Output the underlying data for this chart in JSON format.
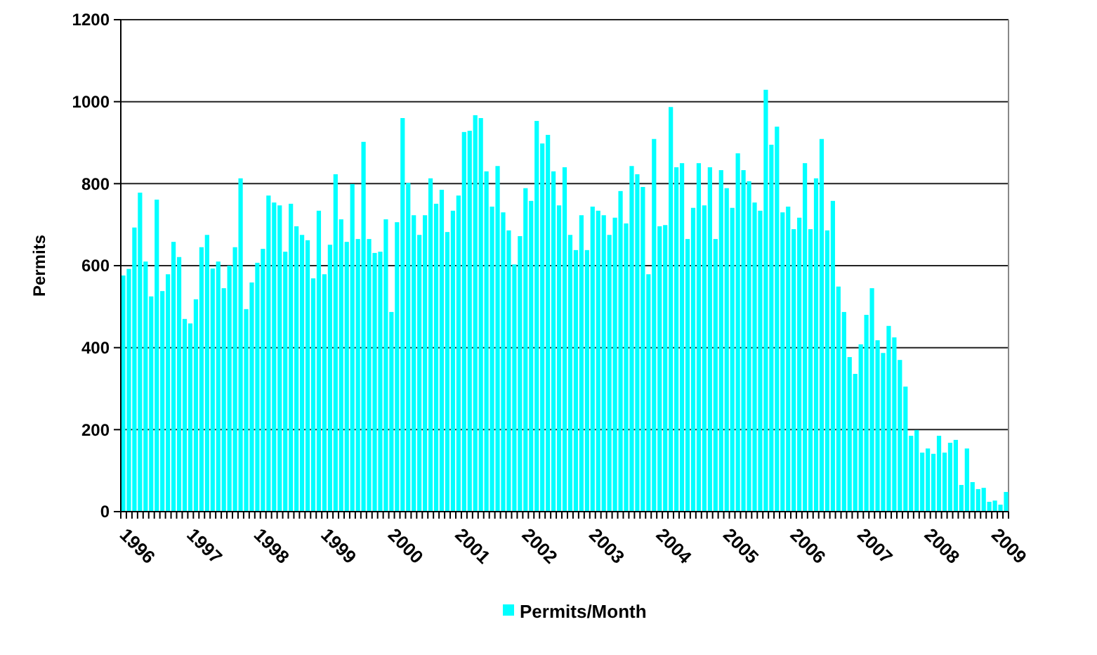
{
  "chart_data": {
    "type": "bar",
    "ylabel": "Permits",
    "categories": [
      "1996",
      null,
      null,
      null,
      null,
      null,
      null,
      null,
      null,
      null,
      null,
      null,
      "1997",
      null,
      null,
      null,
      null,
      null,
      null,
      null,
      null,
      null,
      null,
      null,
      "1998",
      null,
      null,
      null,
      null,
      null,
      null,
      null,
      null,
      null,
      null,
      null,
      "1999",
      null,
      null,
      null,
      null,
      null,
      null,
      null,
      null,
      null,
      null,
      null,
      "2000",
      null,
      null,
      null,
      null,
      null,
      null,
      null,
      null,
      null,
      null,
      null,
      "2001",
      null,
      null,
      null,
      null,
      null,
      null,
      null,
      null,
      null,
      null,
      null,
      "2002",
      null,
      null,
      null,
      null,
      null,
      null,
      null,
      null,
      null,
      null,
      null,
      "2003",
      null,
      null,
      null,
      null,
      null,
      null,
      null,
      null,
      null,
      null,
      null,
      "2004",
      null,
      null,
      null,
      null,
      null,
      null,
      null,
      null,
      null,
      null,
      null,
      "2005",
      null,
      null,
      null,
      null,
      null,
      null,
      null,
      null,
      null,
      null,
      null,
      "2006",
      null,
      null,
      null,
      null,
      null,
      null,
      null,
      null,
      null,
      null,
      null,
      "2007",
      null,
      null,
      null,
      null,
      null,
      null,
      null,
      null,
      null,
      null,
      null,
      "2008",
      null,
      null,
      null,
      null,
      null,
      null,
      null,
      null,
      null,
      null,
      null,
      "2009",
      null,
      null
    ],
    "series": [
      {
        "name": "Permits/Month",
        "color": "#00ffff",
        "values": [
          576,
          592,
          693,
          778,
          610,
          525,
          761,
          538,
          579,
          658,
          621,
          470,
          459,
          518,
          645,
          675,
          593,
          610,
          545,
          600,
          645,
          813,
          494,
          559,
          607,
          641,
          771,
          754,
          747,
          634,
          751,
          696,
          675,
          662,
          569,
          734,
          579,
          651,
          823,
          713,
          658,
          799,
          665,
          902,
          665,
          631,
          634,
          713,
          487,
          706,
          960,
          802,
          723,
          675,
          723,
          813,
          751,
          785,
          682,
          734,
          771,
          926,
          929,
          967,
          960,
          830,
          744,
          843,
          730,
          686,
          603,
          672,
          789,
          758,
          953,
          898,
          919,
          830,
          747,
          840,
          675,
          638,
          723,
          638,
          744,
          734,
          723,
          675,
          717,
          782,
          703,
          843,
          823,
          792,
          579,
          909,
          696,
          699,
          987,
          840,
          850,
          665,
          741,
          850,
          747,
          840,
          665,
          833,
          789,
          741,
          874,
          833,
          806,
          754,
          734,
          1029,
          895,
          939,
          730,
          744,
          689,
          717,
          850,
          689,
          813,
          909,
          686,
          758,
          549,
          487,
          377,
          336,
          408,
          480,
          545,
          418,
          387,
          453,
          425,
          370,
          305,
          185,
          199,
          144,
          154,
          141,
          185,
          144,
          168,
          175,
          65,
          154,
          72,
          55,
          58,
          24,
          27,
          17,
          48
        ]
      }
    ],
    "ylim": [
      0,
      1200
    ],
    "yticks": [
      0,
      200,
      400,
      600,
      800,
      1000,
      1200
    ],
    "grid": "y",
    "legend": "bottom"
  }
}
